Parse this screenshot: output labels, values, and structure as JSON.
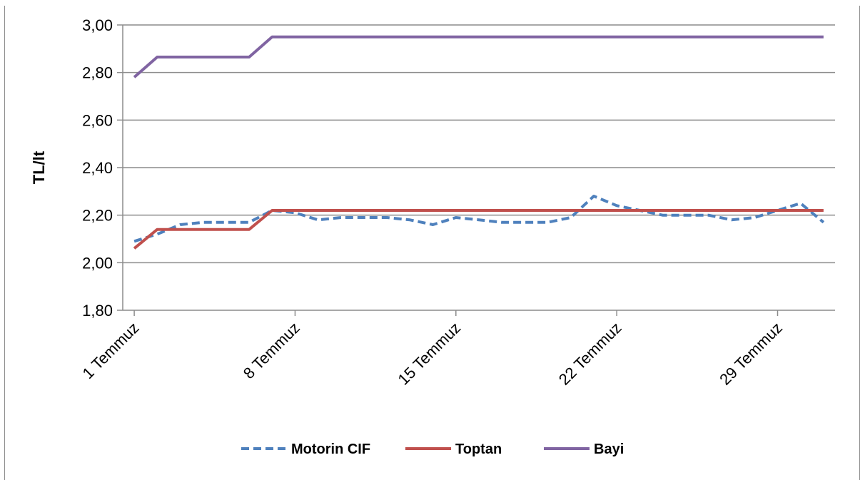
{
  "chart_data": {
    "type": "line",
    "title": "",
    "xlabel": "",
    "ylabel": "TL/lt",
    "ylim": [
      1.8,
      3.0
    ],
    "y_ticks": [
      "1,80",
      "2,00",
      "2,20",
      "2,40",
      "2,60",
      "2,80",
      "3,00"
    ],
    "y_tick_values": [
      1.8,
      2.0,
      2.2,
      2.4,
      2.6,
      2.8,
      3.0
    ],
    "x_tick_labels": [
      "1 Temmuz",
      "8 Temmuz",
      "15 Temmuz",
      "22 Temmuz",
      "29 Temmuz"
    ],
    "x_tick_days": [
      1,
      8,
      15,
      22,
      29
    ],
    "x": [
      1,
      2,
      3,
      4,
      5,
      6,
      7,
      8,
      9,
      10,
      11,
      12,
      13,
      14,
      15,
      16,
      17,
      18,
      19,
      20,
      21,
      22,
      23,
      24,
      25,
      26,
      27,
      28,
      29,
      30,
      31
    ],
    "grid": true,
    "legend_position": "bottom",
    "series": [
      {
        "name": "Motorin CIF",
        "color": "#4F81BD",
        "dash": true,
        "values": [
          2.09,
          2.12,
          2.16,
          2.17,
          2.17,
          2.17,
          2.22,
          2.21,
          2.18,
          2.19,
          2.19,
          2.19,
          2.18,
          2.16,
          2.19,
          2.18,
          2.17,
          2.17,
          2.17,
          2.19,
          2.28,
          2.24,
          2.22,
          2.2,
          2.2,
          2.2,
          2.18,
          2.19,
          2.22,
          2.25,
          2.17
        ]
      },
      {
        "name": "Toptan",
        "color": "#C0504D",
        "dash": false,
        "values": [
          2.06,
          2.14,
          2.14,
          2.14,
          2.14,
          2.14,
          2.22,
          2.22,
          2.22,
          2.22,
          2.22,
          2.22,
          2.22,
          2.22,
          2.22,
          2.22,
          2.22,
          2.22,
          2.22,
          2.22,
          2.22,
          2.22,
          2.22,
          2.22,
          2.22,
          2.22,
          2.22,
          2.22,
          2.22,
          2.22,
          2.22
        ]
      },
      {
        "name": "Bayi",
        "color": "#8064A2",
        "dash": false,
        "values": [
          2.78,
          2.865,
          2.865,
          2.865,
          2.865,
          2.865,
          2.95,
          2.95,
          2.95,
          2.95,
          2.95,
          2.95,
          2.95,
          2.95,
          2.95,
          2.95,
          2.95,
          2.95,
          2.95,
          2.95,
          2.95,
          2.95,
          2.95,
          2.95,
          2.95,
          2.95,
          2.95,
          2.95,
          2.95,
          2.95,
          2.95
        ]
      }
    ]
  }
}
